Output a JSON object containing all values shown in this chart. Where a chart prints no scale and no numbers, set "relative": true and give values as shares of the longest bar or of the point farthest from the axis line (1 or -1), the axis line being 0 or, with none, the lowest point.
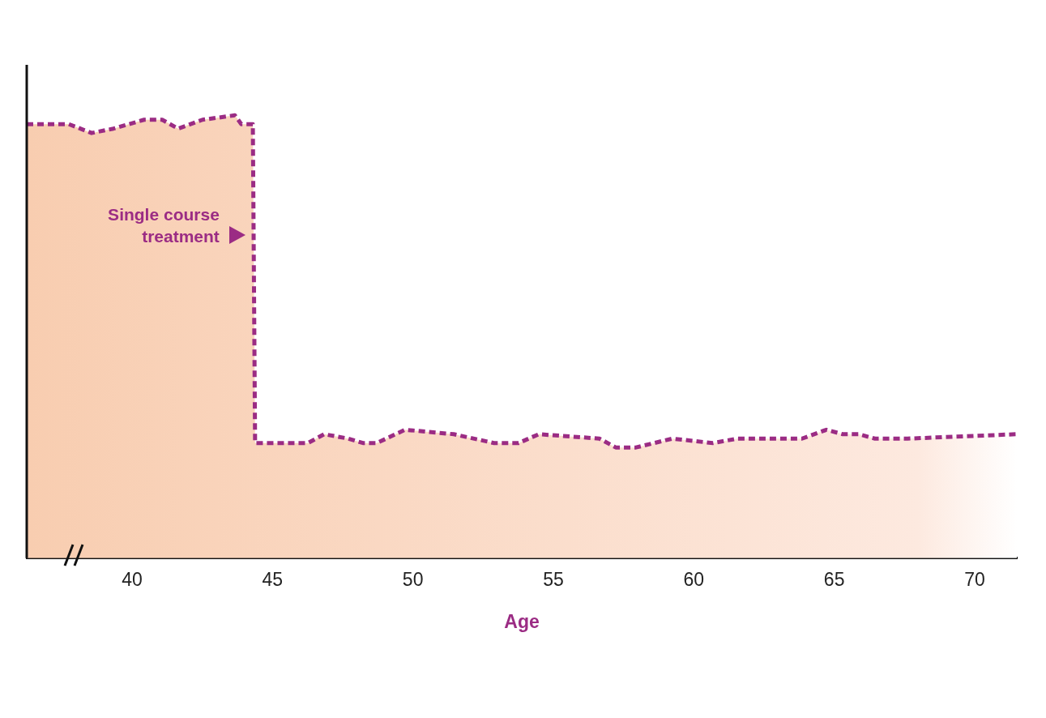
{
  "chart_data": {
    "type": "area",
    "relative": true,
    "xlabel": "Age",
    "xlim": [
      36.25,
      71.5
    ],
    "xticks": [
      40,
      45,
      50,
      55,
      60,
      65,
      70
    ],
    "x": [
      36.25,
      37.75,
      38.56,
      39.34,
      40.43,
      41.07,
      41.64,
      42.51,
      43.66,
      43.89,
      44.3,
      44.38,
      44.47,
      45.11,
      46.26,
      46.84,
      47.7,
      48.22,
      48.71,
      49.72,
      51.45,
      52.89,
      53.76,
      54.48,
      56.64,
      57.22,
      57.94,
      59.23,
      60.68,
      61.55,
      63.85,
      64.72,
      65.3,
      65.87,
      66.45,
      67.61,
      71.5
    ],
    "series": [
      {
        "color": "#9b2c84",
        "values": [
          0.98,
          0.98,
          0.96,
          0.97,
          0.99,
          0.99,
          0.97,
          0.99,
          1,
          0.98,
          0.98,
          0.26,
          0.26,
          0.26,
          0.26,
          0.28,
          0.27,
          0.26,
          0.26,
          0.29,
          0.28,
          0.26,
          0.26,
          0.28,
          0.27,
          0.25,
          0.25,
          0.27,
          0.26,
          0.27,
          0.27,
          0.29,
          0.28,
          0.28,
          0.27,
          0.27,
          0.28
        ]
      }
    ],
    "annotations": [
      {
        "text": "Single course treatment",
        "x": 44.38,
        "y": 0.73
      }
    ],
    "line_style": "dashed",
    "marker": "none",
    "grid": false,
    "legend": false
  }
}
